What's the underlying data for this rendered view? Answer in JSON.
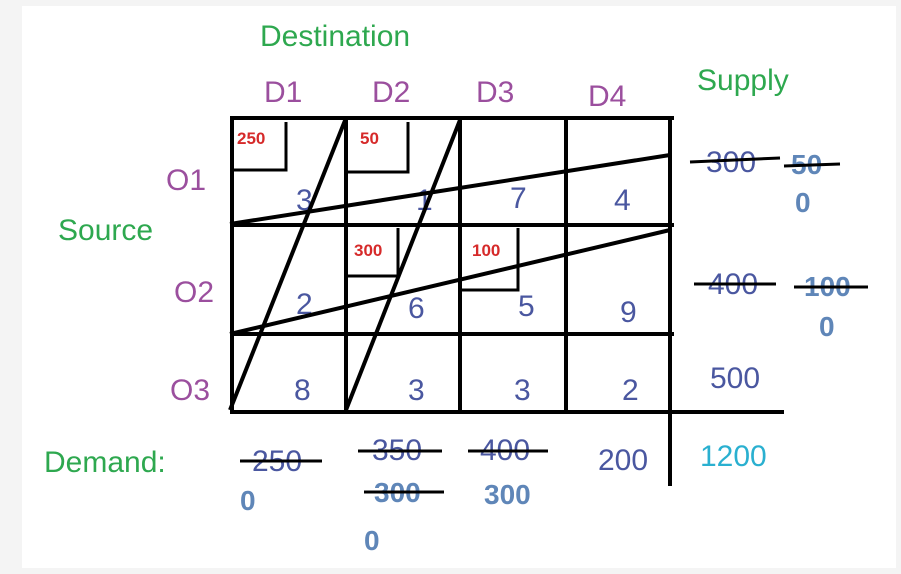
{
  "title": "Destination",
  "supply_title": "Supply",
  "source_title": "Source",
  "demand_label": "Demand:",
  "destinations": [
    "D1",
    "D2",
    "D3",
    "D4"
  ],
  "sources": [
    "O1",
    "O2",
    "O3"
  ],
  "costs": [
    [
      "3",
      "1",
      "7",
      "4"
    ],
    [
      "2",
      "6",
      "5",
      "9"
    ],
    [
      "8",
      "3",
      "3",
      "2"
    ]
  ],
  "allocations": [
    {
      "row": 0,
      "col": 0,
      "value": "250"
    },
    {
      "row": 0,
      "col": 1,
      "value": "50"
    },
    {
      "row": 1,
      "col": 1,
      "value": "300"
    },
    {
      "row": 1,
      "col": 2,
      "value": "100"
    }
  ],
  "supply": [
    {
      "original": "300",
      "updates": [
        "50",
        "0"
      ]
    },
    {
      "original": "400",
      "updates": [
        "100",
        "0"
      ]
    },
    {
      "original": "500",
      "updates": []
    }
  ],
  "demand": [
    {
      "original": "250",
      "updates": [
        "0"
      ]
    },
    {
      "original": "350",
      "updates": [
        "300",
        "0"
      ]
    },
    {
      "original": "400",
      "updates": [
        "300"
      ]
    },
    {
      "original": "200",
      "updates": []
    }
  ],
  "total": "1200",
  "colors": {
    "heading": "#2ea84f",
    "label": "#9b4f9e",
    "cost": "#4a57a0",
    "allocation": "#d62a2a",
    "update": "#5f86b8",
    "total": "#2ab0d0"
  }
}
